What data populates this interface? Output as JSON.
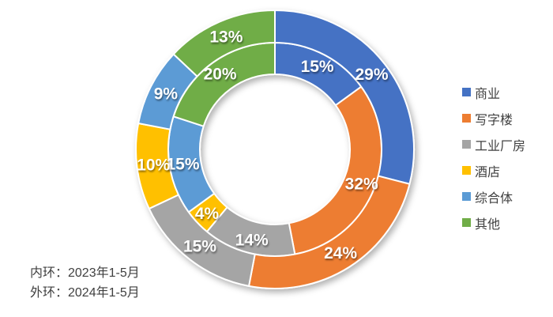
{
  "chart_data": {
    "type": "doughnut",
    "subtype": "double-ring",
    "title": "",
    "categories": [
      "商业",
      "写字楼",
      "工业厂房",
      "酒店",
      "综合体",
      "其他"
    ],
    "colors": [
      "#4472C4",
      "#ED7D31",
      "#A5A5A5",
      "#FFC000",
      "#5B9BD5",
      "#70AD47"
    ],
    "series": [
      {
        "name": "2023年1-5月",
        "ring": "inner",
        "values": [
          15,
          32,
          14,
          4,
          15,
          20
        ]
      },
      {
        "name": "2024年1-5月",
        "ring": "outer",
        "values": [
          29,
          24,
          15,
          10,
          9,
          13
        ]
      }
    ],
    "unit": "%",
    "start_angle_deg": 0,
    "direction": "clockwise",
    "legend_position": "right",
    "label_color": "#ffffff"
  },
  "legend": {
    "items": [
      {
        "label": "商业",
        "color": "#4472C4"
      },
      {
        "label": "写字楼",
        "color": "#ED7D31"
      },
      {
        "label": "工业厂房",
        "color": "#A5A5A5"
      },
      {
        "label": "酒店",
        "color": "#FFC000"
      },
      {
        "label": "综合体",
        "color": "#5B9BD5"
      },
      {
        "label": "其他",
        "color": "#70AD47"
      }
    ]
  },
  "footer": {
    "line1": "内环：2023年1-5月",
    "line2": "外环：2024年1-5月"
  }
}
